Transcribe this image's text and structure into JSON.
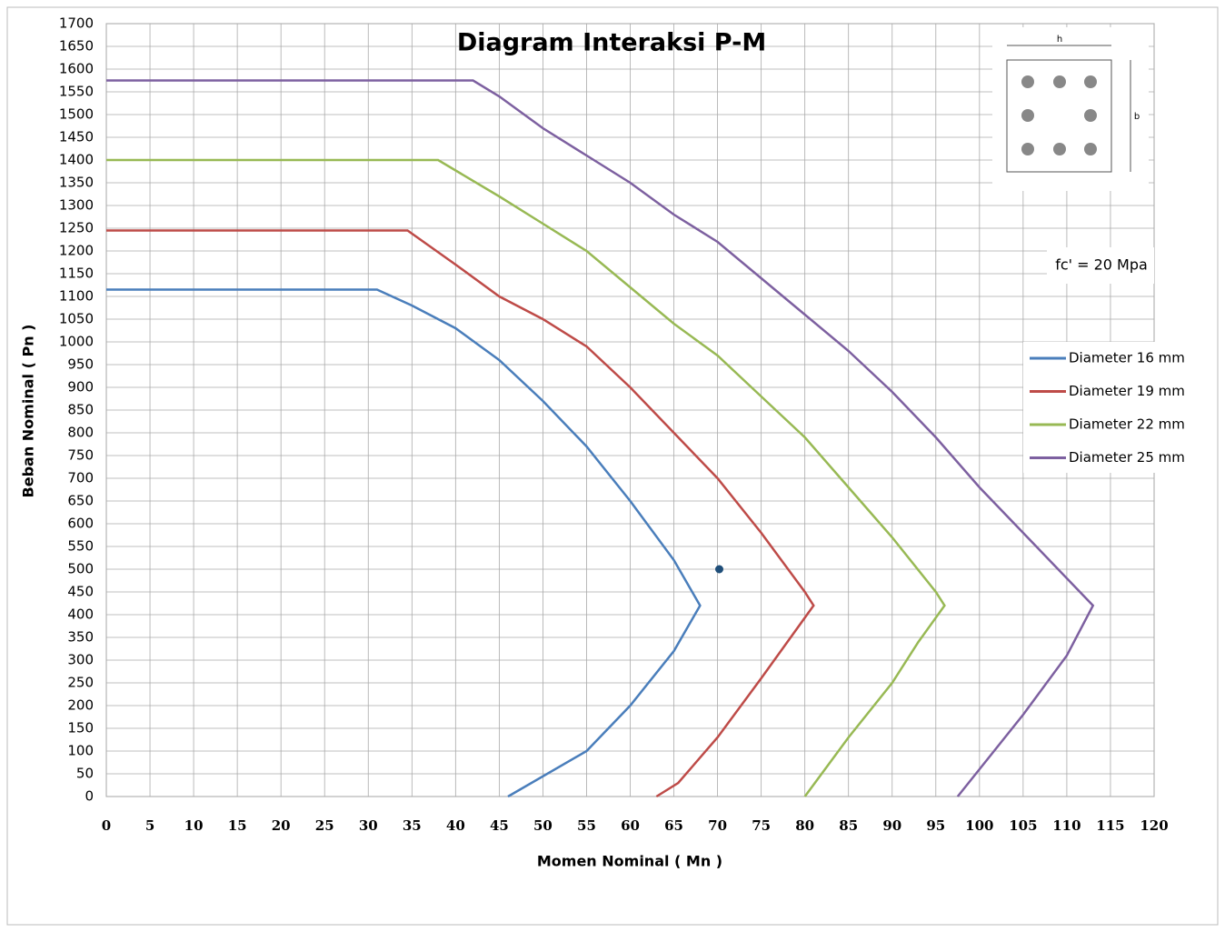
{
  "chart_data": {
    "type": "line",
    "title": "Diagram Interaksi P-M",
    "x_label": "Momen Nominal ( Mn )",
    "y_label": "Beban Nominal ( Pn )",
    "annotation": "fc' = 20 Mpa",
    "inset": {
      "width_label": "h",
      "height_label": "b"
    },
    "xlim": [
      0,
      120
    ],
    "ylim": [
      0,
      1700
    ],
    "xticks": [
      0,
      5,
      10,
      15,
      20,
      25,
      30,
      35,
      40,
      45,
      50,
      55,
      60,
      65,
      70,
      75,
      80,
      85,
      90,
      95,
      100,
      105,
      110,
      115,
      120
    ],
    "yticks": [
      0,
      50,
      100,
      150,
      200,
      250,
      300,
      350,
      400,
      450,
      500,
      550,
      600,
      650,
      700,
      750,
      800,
      850,
      900,
      950,
      1000,
      1050,
      1100,
      1150,
      1200,
      1250,
      1300,
      1350,
      1400,
      1450,
      1500,
      1550,
      1600,
      1650,
      1700
    ],
    "grid": true,
    "legend": "right",
    "series": [
      {
        "name": "Diameter 16 mm",
        "color": "#4a7ebb",
        "x": [
          0,
          31,
          35,
          40,
          45,
          50,
          55,
          60,
          65,
          68,
          65,
          60,
          55,
          46
        ],
        "values": [
          1115,
          1115,
          1080,
          1030,
          960,
          870,
          770,
          650,
          520,
          420,
          320,
          200,
          100,
          0
        ]
      },
      {
        "name": "Diameter 19 mm",
        "color": "#be4b48",
        "x": [
          0,
          34.5,
          40,
          45,
          50,
          55,
          60,
          65,
          70,
          75,
          80,
          81,
          78,
          75,
          70,
          65.5,
          63
        ],
        "values": [
          1245,
          1245,
          1170,
          1100,
          1050,
          990,
          900,
          800,
          700,
          580,
          450,
          420,
          340,
          260,
          130,
          30,
          0
        ]
      },
      {
        "name": "Diameter 22 mm",
        "color": "#98b954",
        "x": [
          0,
          38,
          45,
          50,
          55,
          60,
          65,
          70,
          75,
          80,
          85,
          90,
          95,
          96,
          93,
          90,
          85,
          80
        ],
        "values": [
          1400,
          1400,
          1320,
          1260,
          1200,
          1120,
          1040,
          970,
          880,
          790,
          680,
          570,
          450,
          420,
          340,
          250,
          130,
          0
        ]
      },
      {
        "name": "Diameter 25 mm",
        "color": "#7d60a0",
        "x": [
          0,
          42,
          45,
          50,
          55,
          60,
          65,
          70,
          75,
          80,
          85,
          90,
          95,
          100,
          105,
          110,
          113,
          110,
          105,
          100,
          97.5
        ],
        "values": [
          1575,
          1575,
          1540,
          1470,
          1410,
          1350,
          1280,
          1220,
          1140,
          1060,
          980,
          890,
          790,
          680,
          580,
          480,
          420,
          310,
          180,
          60,
          0
        ]
      }
    ],
    "marker": {
      "x": 70.2,
      "y": 500,
      "color": "#1f4e79"
    }
  }
}
